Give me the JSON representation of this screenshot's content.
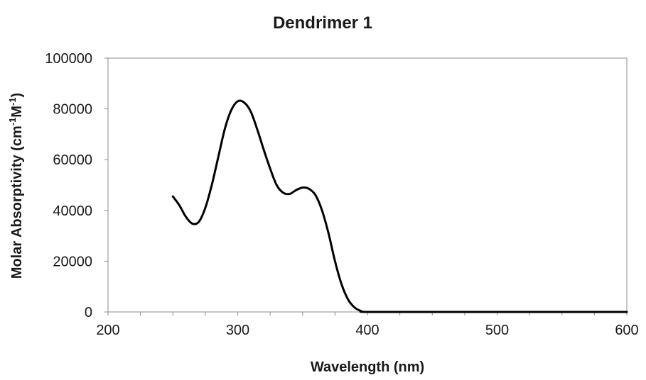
{
  "chart_data": {
    "type": "line",
    "title": "Dendrimer 1",
    "xlabel": "Wavelength (nm)",
    "ylabel": {
      "base": "Molar Absorptivity (cm",
      "sup1": "-1",
      "mid": "M",
      "sup2": "-1",
      "end": ")"
    },
    "xlim": [
      200,
      600
    ],
    "ylim": [
      0,
      100000
    ],
    "x_ticks": [
      200,
      300,
      400,
      500,
      600
    ],
    "y_ticks": [
      0,
      20000,
      40000,
      60000,
      80000,
      100000
    ],
    "grid": false,
    "legend": "none",
    "series": [
      {
        "color": "#000000",
        "points": [
          [
            250,
            45500
          ],
          [
            255,
            42000
          ],
          [
            260,
            37500
          ],
          [
            265,
            34800
          ],
          [
            270,
            35500
          ],
          [
            275,
            41000
          ],
          [
            280,
            50000
          ],
          [
            285,
            61000
          ],
          [
            290,
            72000
          ],
          [
            295,
            79500
          ],
          [
            300,
            83000
          ],
          [
            305,
            82500
          ],
          [
            310,
            79000
          ],
          [
            315,
            72000
          ],
          [
            320,
            64000
          ],
          [
            325,
            56500
          ],
          [
            330,
            50000
          ],
          [
            335,
            47000
          ],
          [
            340,
            46500
          ],
          [
            345,
            48000
          ],
          [
            350,
            49000
          ],
          [
            355,
            48500
          ],
          [
            360,
            46000
          ],
          [
            365,
            40000
          ],
          [
            370,
            31000
          ],
          [
            375,
            20000
          ],
          [
            380,
            11000
          ],
          [
            385,
            5000
          ],
          [
            390,
            1800
          ],
          [
            395,
            400
          ],
          [
            400,
            0
          ],
          [
            450,
            0
          ],
          [
            500,
            0
          ],
          [
            550,
            0
          ],
          [
            600,
            0
          ]
        ]
      }
    ]
  }
}
